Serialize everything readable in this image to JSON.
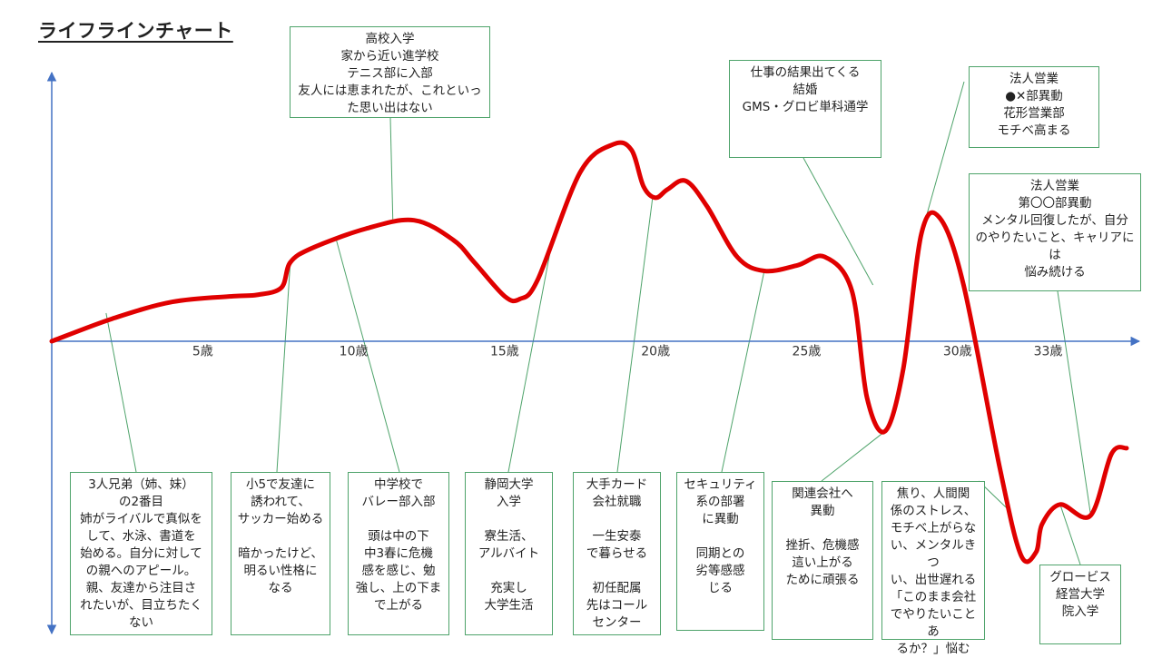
{
  "chart_data": {
    "type": "line",
    "title": "ライフラインチャート",
    "xlabel": "",
    "ylabel": "",
    "xlim": [
      0,
      35.6
    ],
    "ylim": [
      -100,
      100
    ],
    "x_ticks": [
      5,
      10,
      15,
      20,
      25,
      30,
      33
    ],
    "tick_labels": [
      "5歳",
      "10歳",
      "15歳",
      "20歳",
      "25歳",
      "30歳",
      "33歳"
    ],
    "series": [
      {
        "name": "ライフライン",
        "color": "#e00000",
        "points": [
          {
            "x": 0,
            "y": 0
          },
          {
            "x": 2,
            "y": 8
          },
          {
            "x": 4,
            "y": 14
          },
          {
            "x": 6,
            "y": 16
          },
          {
            "x": 6.8,
            "y": 16.5
          },
          {
            "x": 7.6,
            "y": 19
          },
          {
            "x": 7.9,
            "y": 28
          },
          {
            "x": 8.6,
            "y": 33
          },
          {
            "x": 10.4,
            "y": 40
          },
          {
            "x": 12,
            "y": 43
          },
          {
            "x": 13.3,
            "y": 36
          },
          {
            "x": 14,
            "y": 28
          },
          {
            "x": 15,
            "y": 16
          },
          {
            "x": 15.5,
            "y": 15
          },
          {
            "x": 16.1,
            "y": 22
          },
          {
            "x": 17.5,
            "y": 60
          },
          {
            "x": 18.6,
            "y": 70
          },
          {
            "x": 19.2,
            "y": 68
          },
          {
            "x": 19.6,
            "y": 55
          },
          {
            "x": 20,
            "y": 51
          },
          {
            "x": 20.4,
            "y": 54
          },
          {
            "x": 21,
            "y": 57
          },
          {
            "x": 21.7,
            "y": 48
          },
          {
            "x": 22.7,
            "y": 30
          },
          {
            "x": 23.6,
            "y": 25
          },
          {
            "x": 24.7,
            "y": 27
          },
          {
            "x": 25.6,
            "y": 30
          },
          {
            "x": 26.5,
            "y": 18
          },
          {
            "x": 27,
            "y": -20
          },
          {
            "x": 27.6,
            "y": -32
          },
          {
            "x": 28.2,
            "y": -10
          },
          {
            "x": 28.8,
            "y": 38
          },
          {
            "x": 29.4,
            "y": 44
          },
          {
            "x": 30.2,
            "y": 20
          },
          {
            "x": 31.4,
            "y": -45
          },
          {
            "x": 32.1,
            "y": -76
          },
          {
            "x": 32.6,
            "y": -75
          },
          {
            "x": 32.8,
            "y": -65
          },
          {
            "x": 33.4,
            "y": -58
          },
          {
            "x": 34.4,
            "y": -62
          },
          {
            "x": 35.1,
            "y": -40
          },
          {
            "x": 35.6,
            "y": -38
          }
        ]
      }
    ],
    "annotations": [
      {
        "id": "a1",
        "x": 1.8,
        "y": 10,
        "lines": [
          "3人兄弟（姉、妹）",
          "の2番目",
          "姉がライバルで真似を",
          "して、水泳、書道を",
          "始める。自分に対して",
          "の親へのアピール。",
          "親、友達から注目さ",
          "れたいが、目立ちたく",
          "ない"
        ]
      },
      {
        "id": "a2",
        "x": 7.9,
        "y": 28,
        "lines": [
          "小5で友達に",
          "誘われて、",
          "サッカー始める",
          "",
          "暗かったけど、",
          "明るい性格に",
          "なる"
        ]
      },
      {
        "id": "a3",
        "x": 9.4,
        "y": 37,
        "lines": [
          "中学校で",
          "バレー部入部",
          "",
          "頭は中の下",
          "中3春に危機",
          "感を感じ、勉",
          "強し、上の下ま",
          "で上がる"
        ]
      },
      {
        "id": "a4",
        "x": 11.3,
        "y": 42,
        "lines": [
          "高校入学",
          "家から近い進学校",
          "テニス部に入部",
          "友人には恵まれたが、これといっ",
          "た思い出はない"
        ]
      },
      {
        "id": "a5",
        "x": 16.6,
        "y": 37,
        "lines": [
          "静岡大学",
          "入学",
          "",
          "寮生活、",
          "アルバイト",
          "",
          "充実し",
          "大学生活"
        ]
      },
      {
        "id": "a6",
        "x": 19.9,
        "y": 51,
        "lines": [
          "大手カード",
          "会社就職",
          "",
          "一生安泰",
          "で暮らせる",
          "",
          "初任配属",
          "先はコール",
          "センター"
        ]
      },
      {
        "id": "a7",
        "x": 23.6,
        "y": 25,
        "lines": [
          "セキュリティ",
          "系の部署",
          "に異動",
          "",
          "同期との",
          "劣等感感",
          "じる"
        ]
      },
      {
        "id": "a8",
        "x": 27.6,
        "y": -32,
        "lines": [
          "関連会社へ",
          "異動",
          "",
          "挫折、危機感",
          "這い上がる",
          "ために頑張る"
        ]
      },
      {
        "id": "a9",
        "x": 27.2,
        "y": 20,
        "lines": [
          "仕事の結果出てくる",
          "結婚",
          "GMS・グロビ単科通学"
        ]
      },
      {
        "id": "a10",
        "x": 28.8,
        "y": 38,
        "lines": [
          "法人営業",
          "●✕部異動",
          "花形営業部",
          "モチベ高まる"
        ]
      },
      {
        "id": "a11",
        "x": 31.7,
        "y": -60,
        "lines": [
          "焦り、人間関",
          "係のストレス、",
          "モチベ上がらな",
          "い、メンタルきつ",
          "い、出世遅れる",
          "「このまま会社",
          "でやりたいことあ",
          "るか？」悩む"
        ]
      },
      {
        "id": "a12",
        "x": 34.4,
        "y": -61,
        "lines": [
          "法人営業",
          "第〇〇部異動",
          "メンタル回復したが、自分",
          "のやりたいこと、キャリアには",
          "悩み続ける"
        ]
      },
      {
        "id": "a13",
        "x": 33.4,
        "y": -58,
        "lines": [
          "グロービス",
          "経営大学",
          "院入学"
        ]
      }
    ]
  }
}
